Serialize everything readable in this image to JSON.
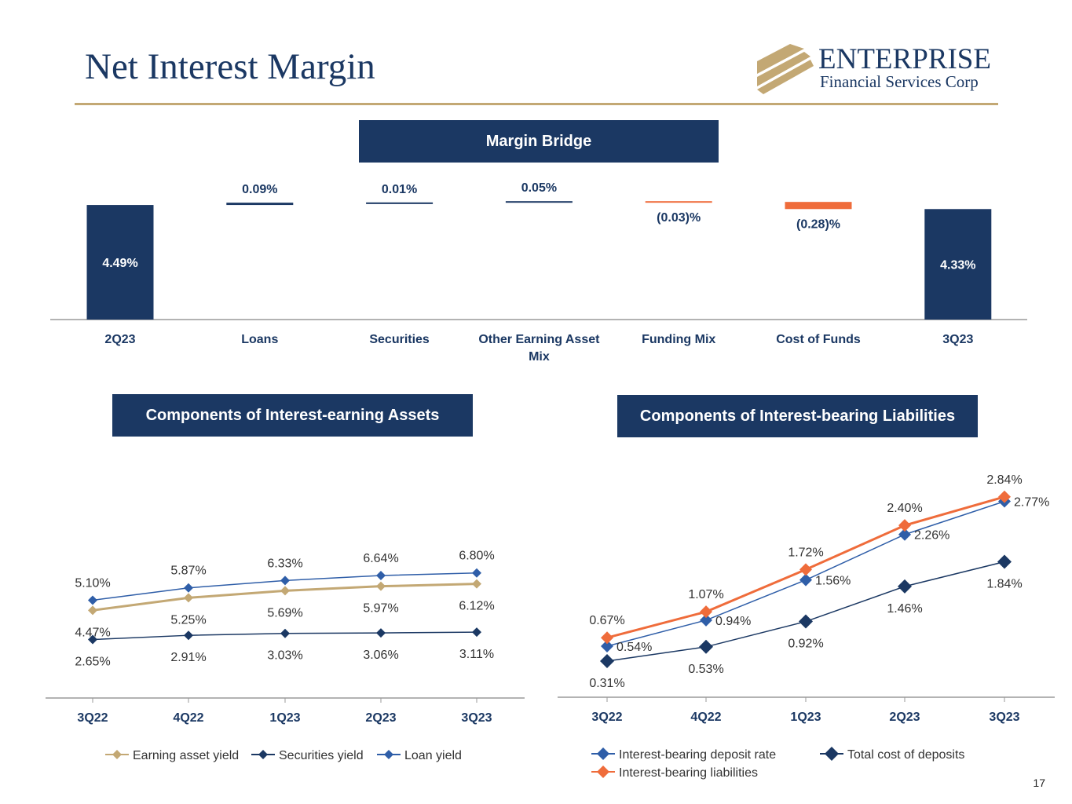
{
  "page": {
    "title": "Net Interest Margin",
    "page_number": "17",
    "logo": {
      "name": "ENTERPRISE",
      "subtitle": "Financial Services Corp"
    },
    "colors": {
      "navy": "#1b3863",
      "gold": "#c3a874",
      "orange": "#ef6c3b",
      "blue": "#2f5ea8",
      "dark_navy": "#1b3863"
    }
  },
  "chart_data": [
    {
      "type": "bar",
      "subtype": "waterfall",
      "title": "Margin Bridge",
      "categories": [
        "2Q23",
        "Loans",
        "Securities",
        "Other Earning Asset Mix",
        "Funding Mix",
        "Cost of Funds",
        "3Q23"
      ],
      "values": [
        4.49,
        0.09,
        0.01,
        0.05,
        -0.03,
        -0.28,
        4.33
      ],
      "labels": [
        "4.49%",
        "0.09%",
        "0.01%",
        "0.05%",
        "(0.03)%",
        "(0.28)%",
        "4.33%"
      ],
      "kinds": [
        "total",
        "delta",
        "delta",
        "delta",
        "delta",
        "delta",
        "total"
      ],
      "baseline": 0.0
    },
    {
      "type": "line",
      "title": "Components of Interest-earning Assets",
      "categories": [
        "3Q22",
        "4Q22",
        "1Q23",
        "2Q23",
        "3Q23"
      ],
      "ylim": [
        0,
        7.5
      ],
      "series": [
        {
          "name": "Earning asset yield",
          "values": [
            4.47,
            5.25,
            5.69,
            5.97,
            6.12
          ],
          "labels": [
            "4.47%",
            "5.25%",
            "5.69%",
            "5.97%",
            "6.12%"
          ],
          "color": "#c3a874",
          "label_pos": "below"
        },
        {
          "name": "Securities yield",
          "values": [
            2.65,
            2.91,
            3.03,
            3.06,
            3.11
          ],
          "labels": [
            "2.65%",
            "2.91%",
            "3.03%",
            "3.06%",
            "3.11%"
          ],
          "color": "#1b3863",
          "label_pos": "below"
        },
        {
          "name": "Loan yield",
          "values": [
            5.1,
            5.87,
            6.33,
            6.64,
            6.8
          ],
          "labels": [
            "5.10%",
            "5.87%",
            "6.33%",
            "6.64%",
            "6.80%"
          ],
          "color": "#2f5ea8",
          "label_pos": "above"
        }
      ]
    },
    {
      "type": "line",
      "title": "Components of Interest-bearing Liabilities",
      "categories": [
        "3Q22",
        "4Q22",
        "1Q23",
        "2Q23",
        "3Q23"
      ],
      "ylim": [
        0,
        3.5
      ],
      "series": [
        {
          "name": "Interest-bearing deposit rate",
          "values": [
            0.54,
            0.94,
            1.56,
            2.26,
            2.77
          ],
          "labels": [
            "0.54%",
            "0.94%",
            "1.56%",
            "2.26%",
            "2.77%"
          ],
          "color": "#2f5ea8",
          "label_pos": "right"
        },
        {
          "name": "Total cost of deposits",
          "values": [
            0.31,
            0.53,
            0.92,
            1.46,
            1.84
          ],
          "labels": [
            "0.31%",
            "0.53%",
            "0.92%",
            "1.46%",
            "1.84%"
          ],
          "color": "#1b3863",
          "label_pos": "below"
        },
        {
          "name": "Interest-bearing liabilities",
          "values": [
            0.67,
            1.07,
            1.72,
            2.4,
            2.84
          ],
          "labels": [
            "0.67%",
            "1.07%",
            "1.72%",
            "2.40%",
            "2.84%"
          ],
          "color": "#ef6c3b",
          "label_pos": "above"
        }
      ]
    }
  ]
}
